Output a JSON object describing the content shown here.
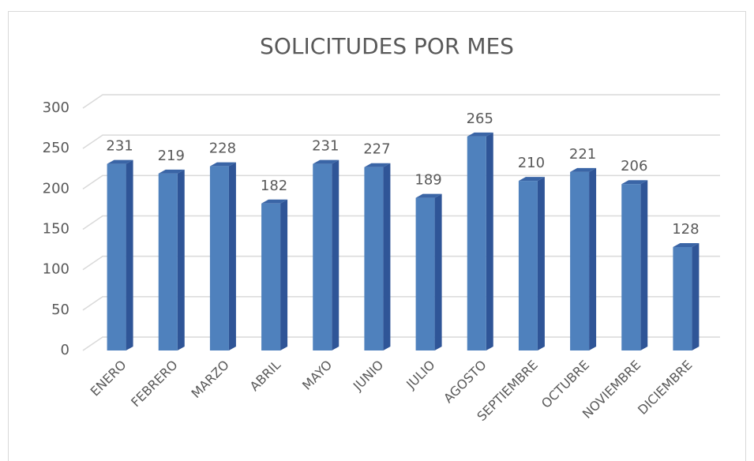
{
  "chart_data": {
    "type": "bar3d",
    "title": "SOLICITUDES POR MES",
    "categories": [
      "ENERO",
      "FEBRERO",
      "MARZO",
      "ABRIL",
      "MAYO",
      "JUNIO",
      "JULIO",
      "AGOSTO",
      "SEPTIEMBRE",
      "OCTUBRE",
      "NOVIEMBRE",
      "DICIEMBRE"
    ],
    "values": [
      231,
      219,
      228,
      182,
      231,
      227,
      189,
      265,
      210,
      221,
      206,
      128
    ],
    "color": "#4f81bd",
    "ylim": [
      0,
      300
    ],
    "yticks": [
      0,
      50,
      100,
      150,
      200,
      250,
      300
    ],
    "grid": true
  }
}
